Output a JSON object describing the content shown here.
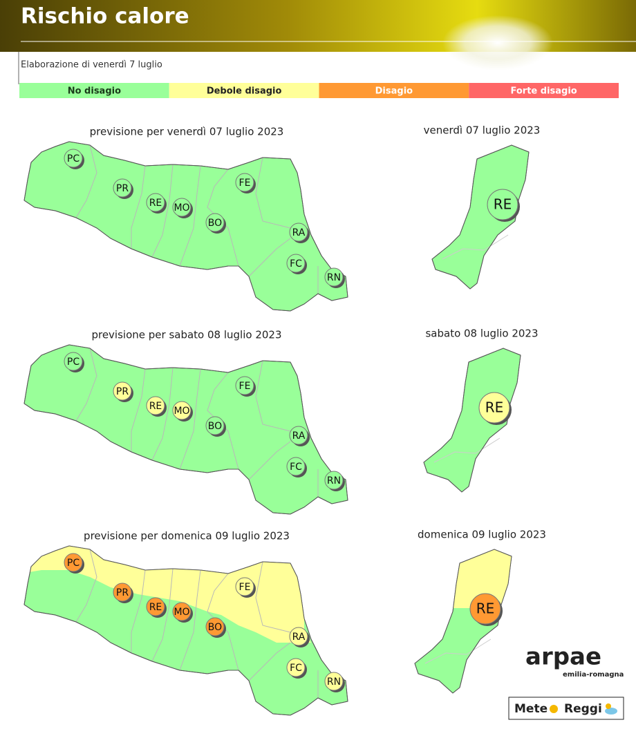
{
  "header": {
    "title": "Rischio calore",
    "subtitle": "Elaborazione di venerdì 7 luglio"
  },
  "legend": [
    {
      "label": "No disagio",
      "color": "#99ff99"
    },
    {
      "label": "Debole disagio",
      "color": "#ffff99"
    },
    {
      "label": "Disagio",
      "color": "#ff9933"
    },
    {
      "label": "Forte disagio",
      "color": "#ff6666"
    }
  ],
  "forecasts": [
    {
      "title": "previsione per venerdì 07 luglio 2023",
      "provinces": [
        {
          "label": "PC",
          "color": "#99ff99"
        },
        {
          "label": "PR",
          "color": "#99ff99"
        },
        {
          "label": "RE",
          "color": "#99ff99"
        },
        {
          "label": "MO",
          "color": "#99ff99"
        },
        {
          "label": "BO",
          "color": "#99ff99"
        },
        {
          "label": "FE",
          "color": "#99ff99"
        },
        {
          "label": "RA",
          "color": "#99ff99"
        },
        {
          "label": "FC",
          "color": "#99ff99"
        },
        {
          "label": "RN",
          "color": "#99ff99"
        }
      ],
      "detail_title": "venerdì 07 luglio 2023",
      "detail": {
        "label": "RE",
        "color": "#99ff99"
      }
    },
    {
      "title": "previsione per sabato 08 luglio 2023",
      "provinces": [
        {
          "label": "PC",
          "color": "#99ff99"
        },
        {
          "label": "PR",
          "color": "#ffff99"
        },
        {
          "label": "RE",
          "color": "#ffff99"
        },
        {
          "label": "MO",
          "color": "#ffff99"
        },
        {
          "label": "BO",
          "color": "#99ff99"
        },
        {
          "label": "FE",
          "color": "#99ff99"
        },
        {
          "label": "RA",
          "color": "#99ff99"
        },
        {
          "label": "FC",
          "color": "#99ff99"
        },
        {
          "label": "RN",
          "color": "#99ff99"
        }
      ],
      "detail_title": "sabato 08 luglio 2023",
      "detail": {
        "label": "RE",
        "color": "#ffff99"
      }
    },
    {
      "title": "previsione per domenica 09 luglio 2023",
      "provinces": [
        {
          "label": "PC",
          "color": "#ff9933"
        },
        {
          "label": "PR",
          "color": "#ff9933"
        },
        {
          "label": "RE",
          "color": "#ff9933"
        },
        {
          "label": "MO",
          "color": "#ff9933"
        },
        {
          "label": "BO",
          "color": "#ff9933"
        },
        {
          "label": "FE",
          "color": "#ffff99"
        },
        {
          "label": "RA",
          "color": "#ffff99"
        },
        {
          "label": "FC",
          "color": "#ffff99"
        },
        {
          "label": "RN",
          "color": "#ffff99"
        }
      ],
      "detail_title": "domenica 09 luglio 2023",
      "detail": {
        "label": "RE",
        "color": "#ff9933"
      }
    }
  ],
  "logos": {
    "arpae": "arpae",
    "arpae_sub": "emilia-romagna",
    "meteo_1": "Mete",
    "meteo_2": "Reggi"
  }
}
